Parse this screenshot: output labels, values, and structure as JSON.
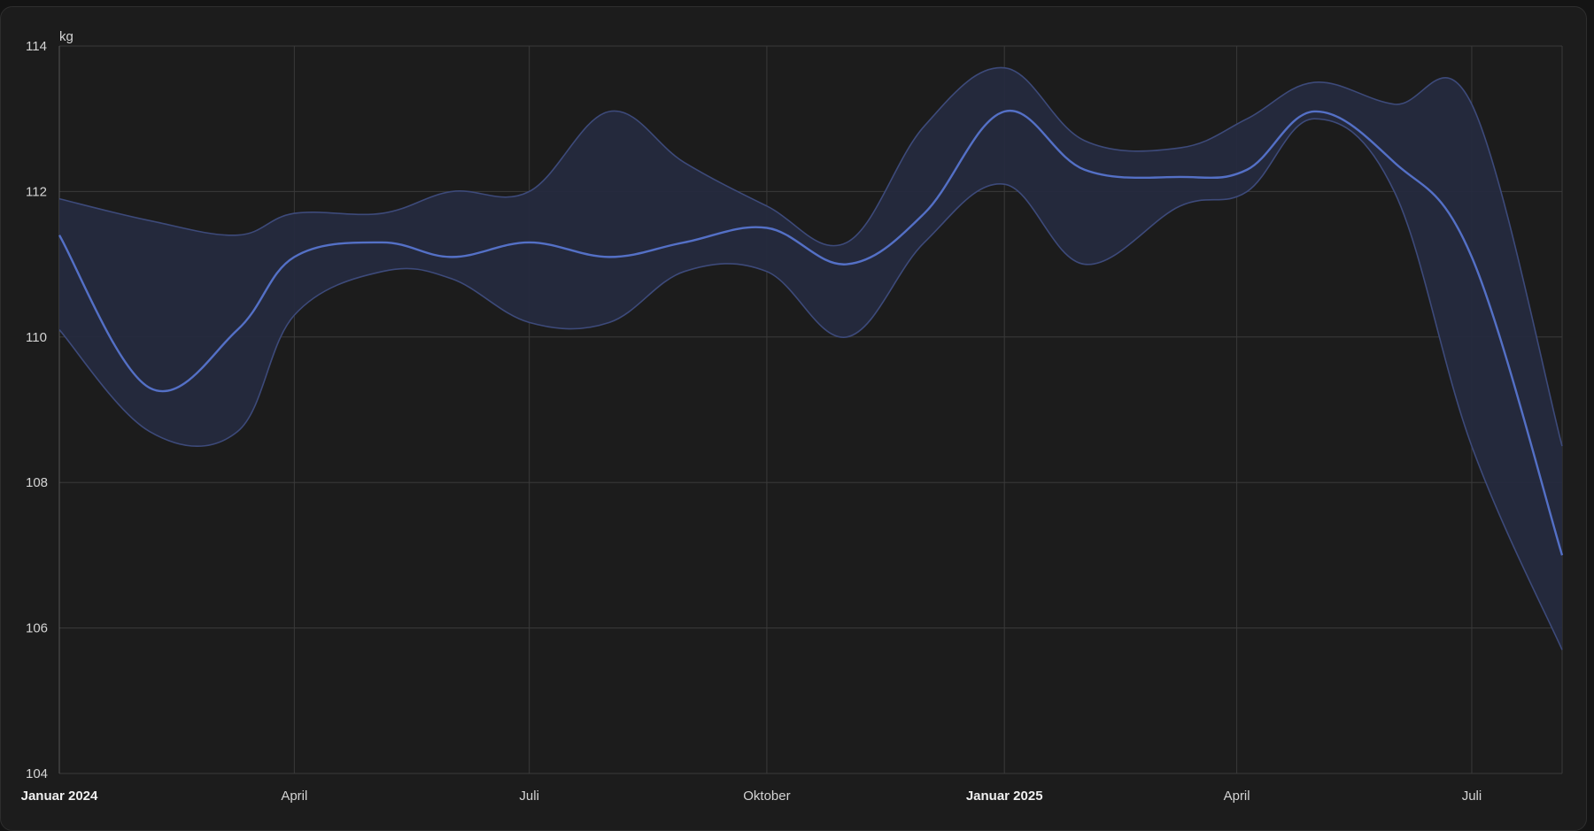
{
  "chart_data": {
    "type": "area",
    "unit_label": "kg",
    "y_ticks": [
      "114",
      "112",
      "110",
      "108",
      "106",
      "104"
    ],
    "ylim": [
      104,
      114
    ],
    "xlim": [
      "2024-01-01",
      "2025-08-05"
    ],
    "x_ticks": [
      {
        "label": "Januar 2024",
        "date": "2024-01-01",
        "bold": true
      },
      {
        "label": "April",
        "date": "2024-04-01",
        "bold": false
      },
      {
        "label": "Juli",
        "date": "2024-07-01",
        "bold": false
      },
      {
        "label": "Oktober",
        "date": "2024-10-01",
        "bold": false
      },
      {
        "label": "Januar 2025",
        "date": "2025-01-01",
        "bold": true
      },
      {
        "label": "April",
        "date": "2025-04-01",
        "bold": false
      },
      {
        "label": "Juli",
        "date": "2025-07-01",
        "bold": false
      }
    ],
    "grid": true,
    "colors": {
      "line": "#5470c6",
      "band_fill": "#252a3e",
      "band_edge": "#3d4a7a"
    },
    "series": [
      {
        "key": "max",
        "x": [
          "2024-01-01",
          "2024-02-05",
          "2024-03-10",
          "2024-04-01",
          "2024-05-05",
          "2024-06-01",
          "2024-07-01",
          "2024-08-01",
          "2024-08-30",
          "2024-10-01",
          "2024-11-01",
          "2024-12-01",
          "2025-01-01",
          "2025-02-01",
          "2025-03-10",
          "2025-04-05",
          "2025-05-01",
          "2025-06-01",
          "2025-07-01",
          "2025-08-05"
        ],
        "values": [
          111.9,
          111.6,
          111.4,
          111.7,
          111.7,
          112.0,
          112.0,
          113.1,
          112.4,
          111.8,
          111.3,
          112.9,
          113.7,
          112.7,
          112.6,
          113.0,
          113.5,
          113.2,
          113.2,
          108.5
        ]
      },
      {
        "key": "mean",
        "x": [
          "2024-01-01",
          "2024-02-05",
          "2024-03-10",
          "2024-04-01",
          "2024-05-05",
          "2024-06-01",
          "2024-07-01",
          "2024-08-01",
          "2024-08-30",
          "2024-10-01",
          "2024-11-01",
          "2024-12-01",
          "2025-01-01",
          "2025-02-01",
          "2025-03-10",
          "2025-04-05",
          "2025-05-01",
          "2025-06-01",
          "2025-07-01",
          "2025-08-05"
        ],
        "values": [
          111.4,
          109.3,
          110.1,
          111.1,
          111.3,
          111.1,
          111.3,
          111.1,
          111.3,
          111.5,
          111.0,
          111.7,
          113.1,
          112.3,
          112.2,
          112.3,
          113.1,
          112.4,
          111.1,
          107.0
        ]
      },
      {
        "key": "min",
        "x": [
          "2024-01-01",
          "2024-02-05",
          "2024-03-10",
          "2024-04-01",
          "2024-05-05",
          "2024-06-01",
          "2024-07-01",
          "2024-08-01",
          "2024-08-30",
          "2024-10-01",
          "2024-11-01",
          "2024-12-01",
          "2025-01-01",
          "2025-02-01",
          "2025-03-10",
          "2025-04-05",
          "2025-05-01",
          "2025-06-01",
          "2025-07-01",
          "2025-08-05"
        ],
        "values": [
          110.1,
          108.7,
          108.7,
          110.3,
          110.9,
          110.8,
          110.2,
          110.2,
          110.9,
          110.9,
          110.0,
          111.3,
          112.1,
          111.0,
          111.8,
          112.0,
          113.0,
          112.0,
          108.5,
          105.7
        ]
      }
    ]
  }
}
